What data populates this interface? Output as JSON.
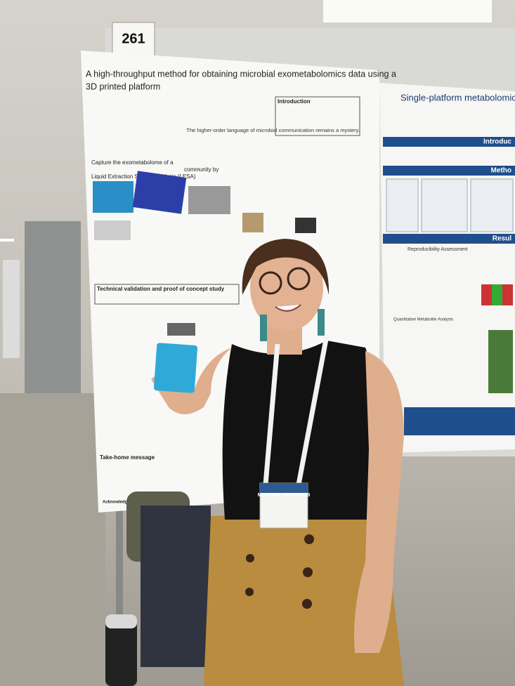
{
  "poster_number": "261",
  "main_poster": {
    "title_lines": [
      "A high-throughput method for obtaining microbial exometabolomics data using a",
      "3D printed platform"
    ],
    "introduction_heading": "Introduction",
    "tagline": "The higher-order language of microbial communication remains a mystery.",
    "capture_heading_lines": [
      "Capture the exometabolome of a",
      "community by",
      "Liquid Extraction Surface Analysis (LESA)"
    ],
    "validation_heading": "Technical validation and proof of concept study",
    "take_home_heading": "Take-home message",
    "acknowledgements_heading": "Acknowledgements"
  },
  "right_poster": {
    "title": "Single-platform metabolomic and prote",
    "sections": [
      "Introduc",
      "Metho",
      "Resul"
    ],
    "subheadings": [
      "Reproducibility Assessment",
      "Quantitative Metabolite Analysis"
    ]
  },
  "badge": {
    "event": "METABOLOMICS 2019"
  }
}
